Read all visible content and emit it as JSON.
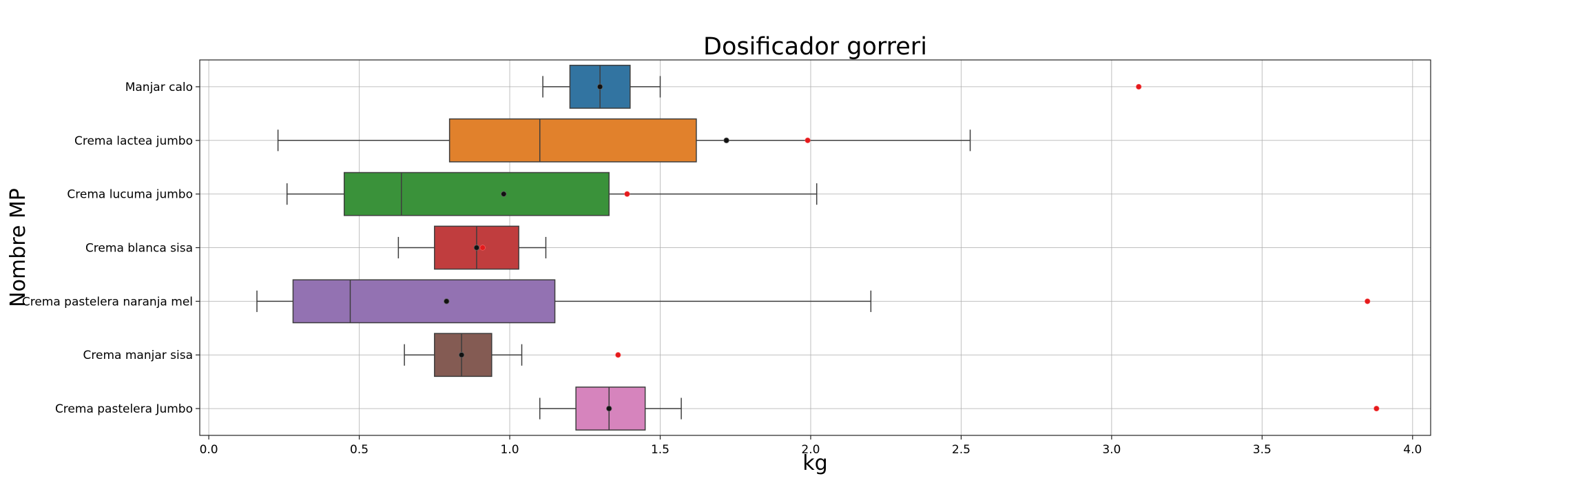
{
  "chart_data": {
    "type": "boxplot",
    "orientation": "horizontal",
    "title": "Dosificador gorreri",
    "xlabel": "kg",
    "ylabel": "Nombre MP",
    "xlim": [
      -0.03,
      4.06
    ],
    "xticks": [
      0.0,
      0.5,
      1.0,
      1.5,
      2.0,
      2.5,
      3.0,
      3.5,
      4.0
    ],
    "xtick_labels": [
      "0.0",
      "0.5",
      "1.0",
      "1.5",
      "2.0",
      "2.5",
      "3.0",
      "3.5",
      "4.0"
    ],
    "grid": true,
    "colors": {
      "mean_marker": "#111111",
      "red_marker": "#e41a1c"
    },
    "categories": [
      "Manjar calo",
      "Crema lactea jumbo",
      "Crema lucuma jumbo",
      "Crema blanca sisa",
      "Crema pastelera naranja mel",
      "Crema manjar sisa",
      "Crema pastelera Jumbo"
    ],
    "boxes": [
      {
        "category": "Manjar calo",
        "whisker_low": 1.11,
        "q1": 1.2,
        "median": 1.3,
        "q3": 1.4,
        "whisker_high": 1.5,
        "mean": 1.3,
        "red_point": 3.09,
        "color": "#3274a1"
      },
      {
        "category": "Crema lactea jumbo",
        "whisker_low": 0.23,
        "q1": 0.8,
        "median": 1.1,
        "q3": 1.62,
        "whisker_high": 2.53,
        "mean": 1.72,
        "red_point": 1.99,
        "color": "#e1812c"
      },
      {
        "category": "Crema lucuma jumbo",
        "whisker_low": 0.26,
        "q1": 0.45,
        "median": 0.64,
        "q3": 1.33,
        "whisker_high": 2.02,
        "mean": 0.98,
        "red_point": 1.39,
        "color": "#3a923a"
      },
      {
        "category": "Crema blanca sisa",
        "whisker_low": 0.63,
        "q1": 0.75,
        "median": 0.89,
        "q3": 1.03,
        "whisker_high": 1.12,
        "mean": 0.89,
        "red_point": 0.91,
        "color": "#c03d3e"
      },
      {
        "category": "Crema pastelera naranja mel",
        "whisker_low": 0.16,
        "q1": 0.28,
        "median": 0.47,
        "q3": 1.15,
        "whisker_high": 2.2,
        "mean": 0.79,
        "red_point": 3.85,
        "color": "#9372b2"
      },
      {
        "category": "Crema manjar sisa",
        "whisker_low": 0.65,
        "q1": 0.75,
        "median": 0.84,
        "q3": 0.94,
        "whisker_high": 1.04,
        "mean": 0.84,
        "red_point": 1.36,
        "color": "#845b53"
      },
      {
        "category": "Crema pastelera Jumbo",
        "whisker_low": 1.1,
        "q1": 1.22,
        "median": 1.33,
        "q3": 1.45,
        "whisker_high": 1.57,
        "mean": 1.33,
        "red_point": 3.88,
        "color": "#d684bd"
      }
    ]
  }
}
